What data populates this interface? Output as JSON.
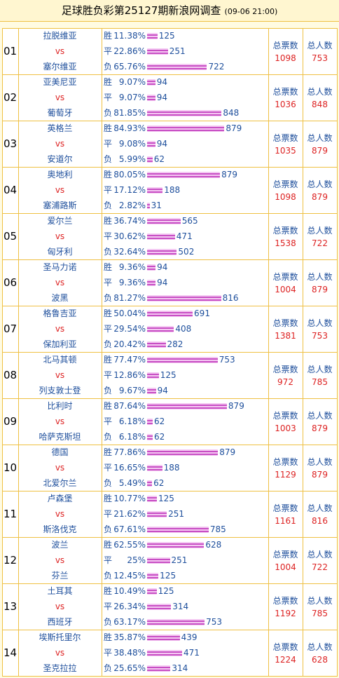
{
  "header": {
    "title": "足球胜负彩第25127期新浪网调查",
    "time": "(09-06 21:00)"
  },
  "labels": {
    "vs": "vs",
    "votes": "总票数",
    "people": "总人数"
  },
  "matches": [
    {
      "no": "01",
      "home": "拉脱维亚",
      "away": "塞尔维亚",
      "outcomes": [
        {
          "label": "胜",
          "value": 11.38,
          "value_label": "11.38%",
          "count": 125
        },
        {
          "label": "平",
          "value": 22.86,
          "value_label": "22.86%",
          "count": 251
        },
        {
          "label": "负",
          "value": 65.76,
          "value_label": "65.76%",
          "count": 722
        }
      ],
      "votes": 1098,
      "people": 753
    },
    {
      "no": "02",
      "home": "亚美尼亚",
      "away": "葡萄牙",
      "outcomes": [
        {
          "label": "胜",
          "value": 9.07,
          "value_label": "9.07%",
          "count": 94
        },
        {
          "label": "平",
          "value": 9.07,
          "value_label": "9.07%",
          "count": 94
        },
        {
          "label": "负",
          "value": 81.85,
          "value_label": "81.85%",
          "count": 848
        }
      ],
      "votes": 1036,
      "people": 848
    },
    {
      "no": "03",
      "home": "英格兰",
      "away": "安道尔",
      "outcomes": [
        {
          "label": "胜",
          "value": 84.93,
          "value_label": "84.93%",
          "count": 879
        },
        {
          "label": "平",
          "value": 9.08,
          "value_label": "9.08%",
          "count": 94
        },
        {
          "label": "负",
          "value": 5.99,
          "value_label": "5.99%",
          "count": 62
        }
      ],
      "votes": 1035,
      "people": 879
    },
    {
      "no": "04",
      "home": "奥地利",
      "away": "塞浦路斯",
      "outcomes": [
        {
          "label": "胜",
          "value": 80.05,
          "value_label": "80.05%",
          "count": 879
        },
        {
          "label": "平",
          "value": 17.12,
          "value_label": "17.12%",
          "count": 188
        },
        {
          "label": "负",
          "value": 2.82,
          "value_label": "2.82%",
          "count": 31
        }
      ],
      "votes": 1098,
      "people": 879
    },
    {
      "no": "05",
      "home": "爱尔兰",
      "away": "匈牙利",
      "outcomes": [
        {
          "label": "胜",
          "value": 36.74,
          "value_label": "36.74%",
          "count": 565
        },
        {
          "label": "平",
          "value": 30.62,
          "value_label": "30.62%",
          "count": 471
        },
        {
          "label": "负",
          "value": 32.64,
          "value_label": "32.64%",
          "count": 502
        }
      ],
      "votes": 1538,
      "people": 722
    },
    {
      "no": "06",
      "home": "圣马力诺",
      "away": "波黑",
      "outcomes": [
        {
          "label": "胜",
          "value": 9.36,
          "value_label": "9.36%",
          "count": 94
        },
        {
          "label": "平",
          "value": 9.36,
          "value_label": "9.36%",
          "count": 94
        },
        {
          "label": "负",
          "value": 81.27,
          "value_label": "81.27%",
          "count": 816
        }
      ],
      "votes": 1004,
      "people": 879
    },
    {
      "no": "07",
      "home": "格鲁吉亚",
      "away": "保加利亚",
      "outcomes": [
        {
          "label": "胜",
          "value": 50.04,
          "value_label": "50.04%",
          "count": 691
        },
        {
          "label": "平",
          "value": 29.54,
          "value_label": "29.54%",
          "count": 408
        },
        {
          "label": "负",
          "value": 20.42,
          "value_label": "20.42%",
          "count": 282
        }
      ],
      "votes": 1381,
      "people": 753
    },
    {
      "no": "08",
      "home": "北马其顿",
      "away": "列支敦士登",
      "outcomes": [
        {
          "label": "胜",
          "value": 77.47,
          "value_label": "77.47%",
          "count": 753
        },
        {
          "label": "平",
          "value": 12.86,
          "value_label": "12.86%",
          "count": 125
        },
        {
          "label": "负",
          "value": 9.67,
          "value_label": "9.67%",
          "count": 94
        }
      ],
      "votes": 972,
      "people": 785
    },
    {
      "no": "09",
      "home": "比利时",
      "away": "哈萨克斯坦",
      "outcomes": [
        {
          "label": "胜",
          "value": 87.64,
          "value_label": "87.64%",
          "count": 879
        },
        {
          "label": "平",
          "value": 6.18,
          "value_label": "6.18%",
          "count": 62
        },
        {
          "label": "负",
          "value": 6.18,
          "value_label": "6.18%",
          "count": 62
        }
      ],
      "votes": 1003,
      "people": 879
    },
    {
      "no": "10",
      "home": "德国",
      "away": "北爱尔兰",
      "outcomes": [
        {
          "label": "胜",
          "value": 77.86,
          "value_label": "77.86%",
          "count": 879
        },
        {
          "label": "平",
          "value": 16.65,
          "value_label": "16.65%",
          "count": 188
        },
        {
          "label": "负",
          "value": 5.49,
          "value_label": "5.49%",
          "count": 62
        }
      ],
      "votes": 1129,
      "people": 879
    },
    {
      "no": "11",
      "home": "卢森堡",
      "away": "斯洛伐克",
      "outcomes": [
        {
          "label": "胜",
          "value": 10.77,
          "value_label": "10.77%",
          "count": 125
        },
        {
          "label": "平",
          "value": 21.62,
          "value_label": "21.62%",
          "count": 251
        },
        {
          "label": "负",
          "value": 67.61,
          "value_label": "67.61%",
          "count": 785
        }
      ],
      "votes": 1161,
      "people": 816
    },
    {
      "no": "12",
      "home": "波兰",
      "away": "芬兰",
      "outcomes": [
        {
          "label": "胜",
          "value": 62.55,
          "value_label": "62.55%",
          "count": 628
        },
        {
          "label": "平",
          "value": 25,
          "value_label": "25%",
          "count": 251
        },
        {
          "label": "负",
          "value": 12.45,
          "value_label": "12.45%",
          "count": 125
        }
      ],
      "votes": 1004,
      "people": 722
    },
    {
      "no": "13",
      "home": "土耳其",
      "away": "西班牙",
      "outcomes": [
        {
          "label": "胜",
          "value": 10.49,
          "value_label": "10.49%",
          "count": 125
        },
        {
          "label": "平",
          "value": 26.34,
          "value_label": "26.34%",
          "count": 314
        },
        {
          "label": "负",
          "value": 63.17,
          "value_label": "63.17%",
          "count": 753
        }
      ],
      "votes": 1192,
      "people": 785
    },
    {
      "no": "14",
      "home": "埃斯托里尔",
      "away": "圣克拉拉",
      "outcomes": [
        {
          "label": "胜",
          "value": 35.87,
          "value_label": "35.87%",
          "count": 439
        },
        {
          "label": "平",
          "value": 38.48,
          "value_label": "38.48%",
          "count": 471
        },
        {
          "label": "负",
          "value": 25.65,
          "value_label": "25.65%",
          "count": 314
        }
      ],
      "votes": 1224,
      "people": 628
    }
  ]
}
